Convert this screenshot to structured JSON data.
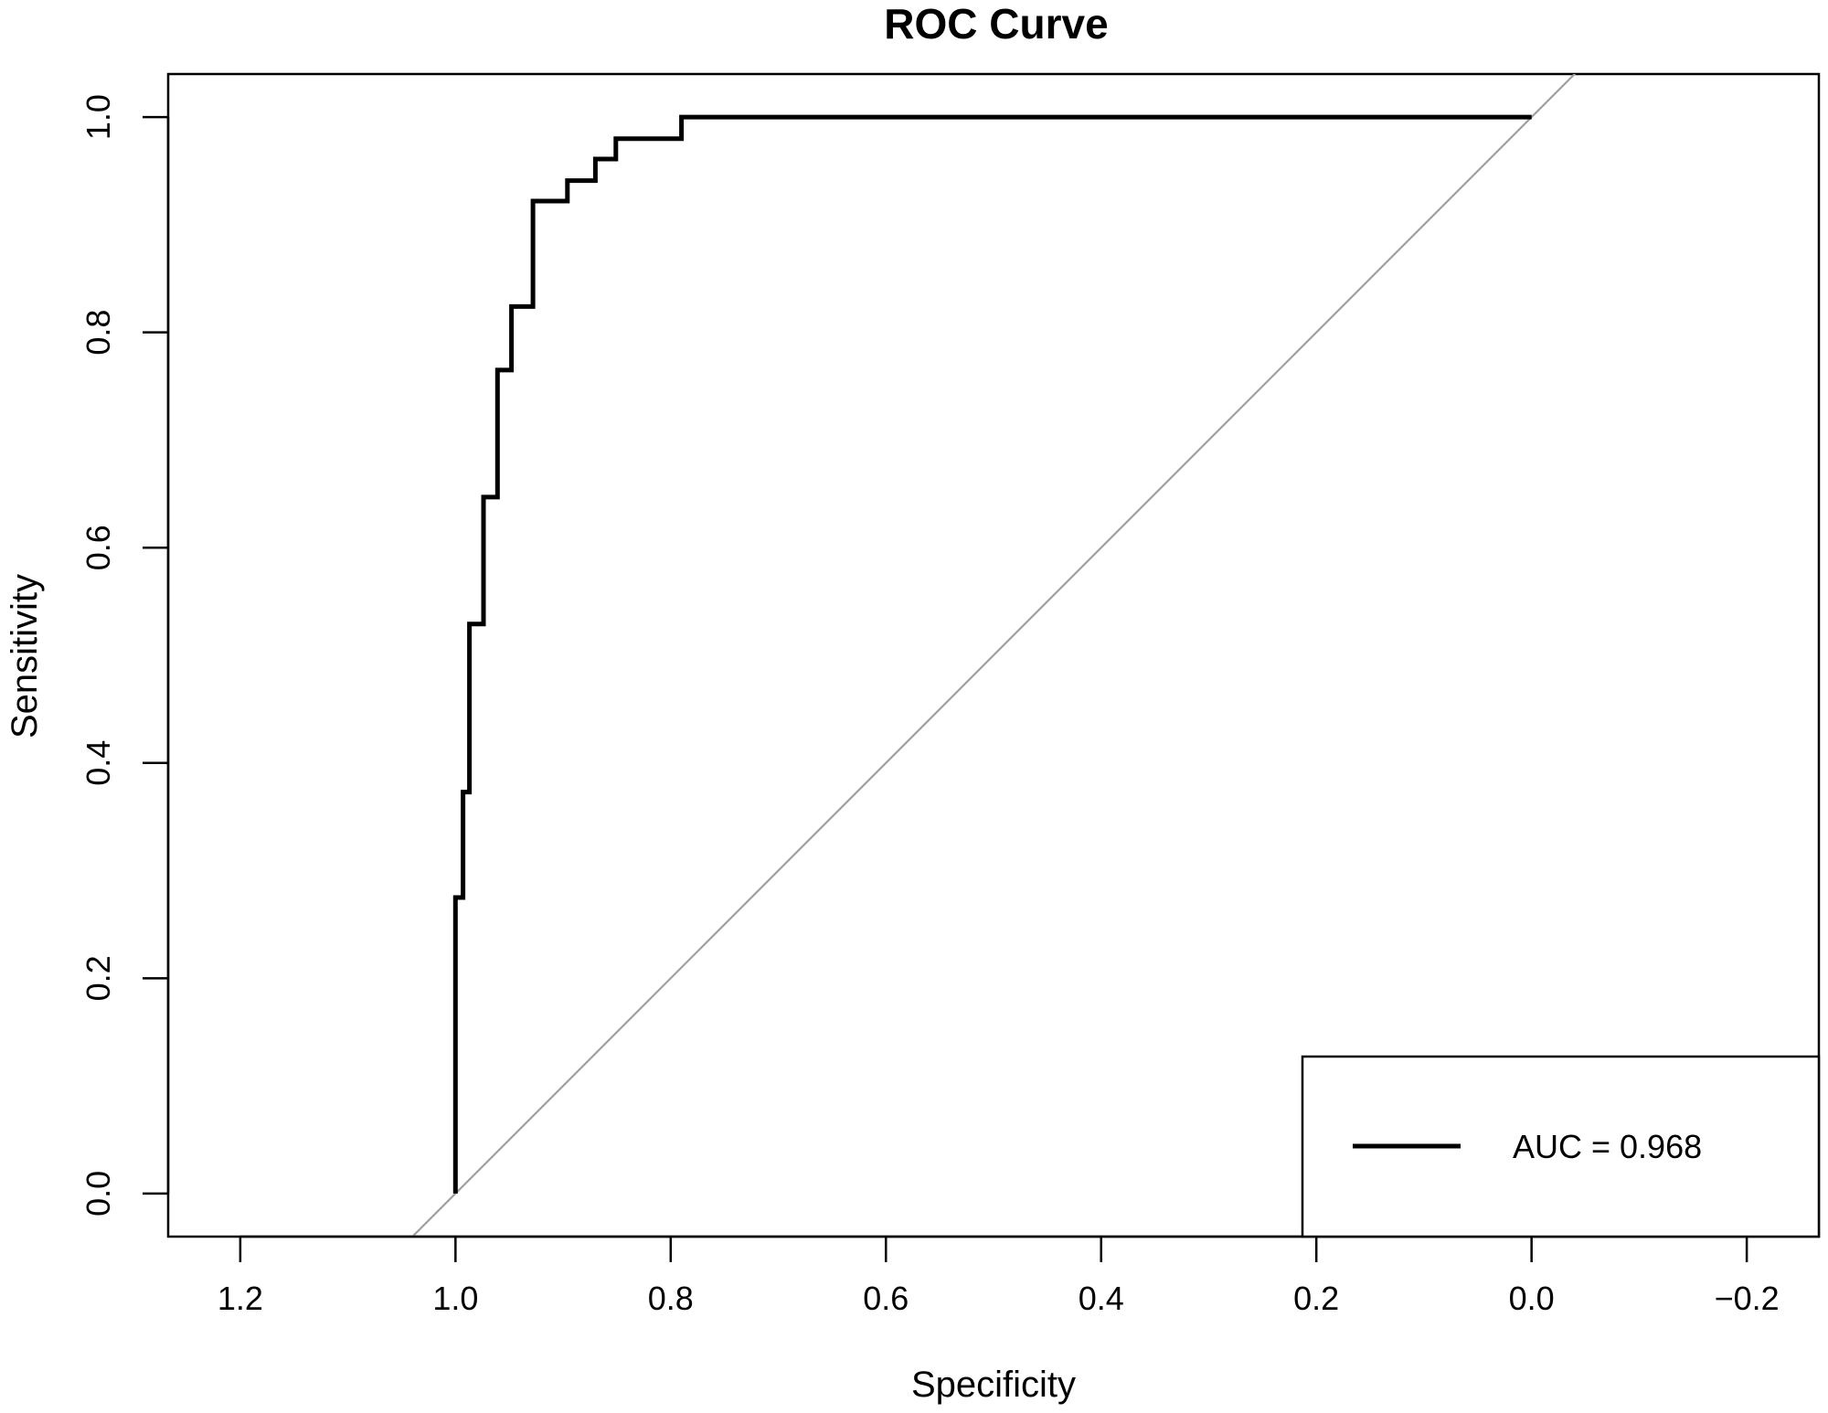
{
  "chart_data": {
    "type": "line",
    "title": "ROC Curve",
    "xlabel": "Specificity",
    "ylabel": "Sensitivity",
    "x_reversed": true,
    "xlim": [
      1.267,
      -0.267
    ],
    "ylim": [
      -0.04,
      1.04
    ],
    "xticks": [
      1.2,
      1.0,
      0.8,
      0.6,
      0.4,
      0.2,
      0.0,
      -0.2
    ],
    "xtick_labels": [
      "1.2",
      "1.0",
      "0.8",
      "0.6",
      "0.4",
      "0.2",
      "0.0",
      "−0.2"
    ],
    "yticks": [
      0.0,
      0.2,
      0.4,
      0.6,
      0.8,
      1.0
    ],
    "ytick_labels": [
      "0.0",
      "0.2",
      "0.4",
      "0.6",
      "0.8",
      "1.0"
    ],
    "grid": false,
    "legend": {
      "position": "bottom-right",
      "entries": [
        "AUC = 0.968"
      ]
    },
    "series": [
      {
        "name": "AUC = 0.968",
        "color": "#000000",
        "specificity": [
          1.0,
          1.0,
          0.993,
          0.993,
          0.987,
          0.987,
          0.974,
          0.974,
          0.961,
          0.961,
          0.948,
          0.948,
          0.928,
          0.928,
          0.896,
          0.896,
          0.87,
          0.87,
          0.851,
          0.851,
          0.79,
          0.79,
          0.0
        ],
        "sensitivity": [
          0.0,
          0.275,
          0.275,
          0.373,
          0.373,
          0.529,
          0.529,
          0.647,
          0.647,
          0.765,
          0.765,
          0.824,
          0.824,
          0.922,
          0.922,
          0.941,
          0.941,
          0.961,
          0.961,
          0.98,
          0.98,
          1.0,
          1.0
        ]
      }
    ],
    "reference_line": {
      "from": [
        1,
        0
      ],
      "to": [
        0,
        1
      ],
      "color": "#a0a0a0"
    }
  }
}
